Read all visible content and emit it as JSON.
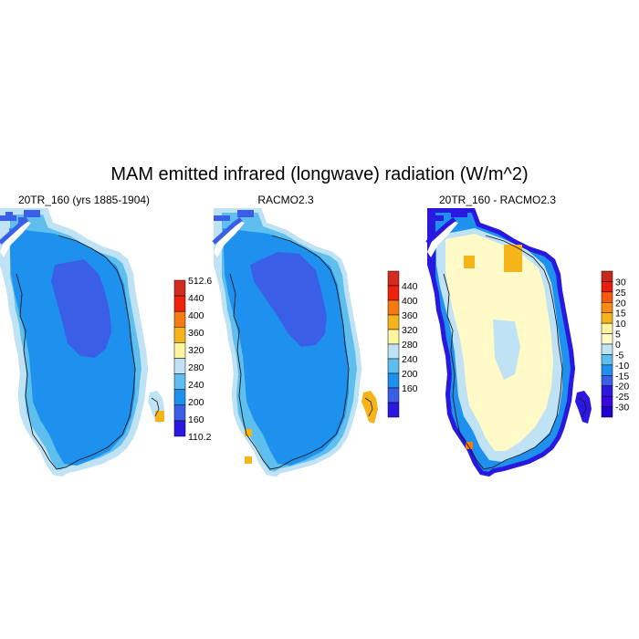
{
  "title": "MAM emitted infrared (longwave) radiation (W/m^2)",
  "panels": [
    {
      "title": "20TR_160 (yrs 1885-1904)",
      "colorbar": {
        "labels": [
          "512.6",
          "440",
          "400",
          "360",
          "320",
          "280",
          "240",
          "200",
          "160",
          "110.2"
        ],
        "colors": [
          "#d42a20",
          "#f0220c",
          "#f57a12",
          "#f5b41a",
          "#fff4a0",
          "#bfe2f5",
          "#5ebfee",
          "#1e90ee",
          "#3a5fe6",
          "#2a18e0"
        ]
      }
    },
    {
      "title": "RACMO2.3",
      "colorbar": {
        "labels": [
          "440",
          "400",
          "360",
          "320",
          "280",
          "240",
          "200",
          "160"
        ],
        "colors": [
          "#d42a20",
          "#f0220c",
          "#f57a12",
          "#f5b41a",
          "#fff4a0",
          "#bfe2f5",
          "#5ebfee",
          "#1e90ee",
          "#3a5fe6",
          "#2a18e0"
        ]
      }
    },
    {
      "title": "20TR_160 - RACMO2.3",
      "colorbar": {
        "labels": [
          "30",
          "25",
          "20",
          "15",
          "10",
          "5",
          "0",
          "-5",
          "-10",
          "-15",
          "-20",
          "-25",
          "-30"
        ],
        "colors": [
          "#c8281e",
          "#ea1e0c",
          "#f55a10",
          "#f78c14",
          "#f5b41a",
          "#fff4a0",
          "#fffac8",
          "#bfe2f5",
          "#5ebfee",
          "#1e90ee",
          "#3a5fe6",
          "#2a18e0",
          "#3808e0",
          "#2000d0"
        ]
      }
    }
  ]
}
